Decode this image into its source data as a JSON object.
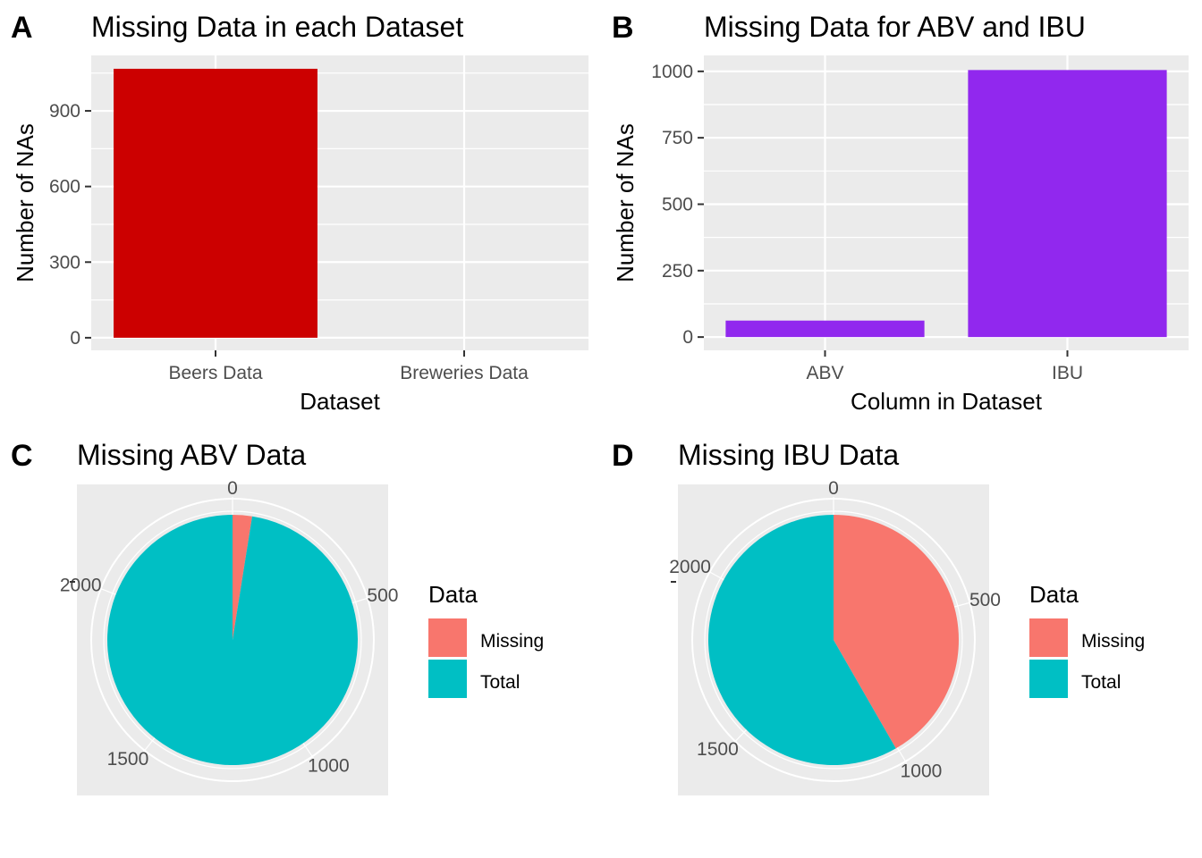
{
  "panels": {
    "a": "A",
    "b": "B",
    "c": "C",
    "d": "D"
  },
  "colors": {
    "panel_bg": "#EBEBEB",
    "grid": "#FFFFFF",
    "tick_text": "#4D4D4D",
    "beers_bar": "#CC0000",
    "abv_ibu_bar": "#9128EE",
    "missing": "#F8766D",
    "total": "#00BFC4"
  },
  "chart_data": [
    {
      "panel": "A",
      "type": "bar",
      "title": "Missing Data in each Dataset",
      "xlabel": "Dataset",
      "ylabel": "Number of NAs",
      "categories": [
        "Beers Data",
        "Breweries Data"
      ],
      "values": [
        1067,
        0
      ],
      "ylim": [
        -50,
        1120
      ],
      "yticks": [
        0,
        300,
        600,
        900
      ],
      "grid": true
    },
    {
      "panel": "B",
      "type": "bar",
      "title": "Missing Data for ABV and IBU",
      "xlabel": "Column in Dataset",
      "ylabel": "Number of NAs",
      "categories": [
        "ABV",
        "IBU"
      ],
      "values": [
        62,
        1005
      ],
      "ylim": [
        -50,
        1060
      ],
      "yticks": [
        0,
        250,
        500,
        750,
        1000
      ],
      "grid": true
    },
    {
      "panel": "C",
      "type": "pie",
      "title": "Missing ABV Data",
      "legend_title": "Data",
      "legend_placement": "right",
      "labels": [
        "Missing",
        "Total"
      ],
      "values": [
        62,
        2410
      ],
      "radial_ticks": [
        0,
        500,
        1000,
        1500,
        2000
      ]
    },
    {
      "panel": "D",
      "type": "pie",
      "title": "Missing IBU Data",
      "legend_title": "Data",
      "legend_placement": "right",
      "labels": [
        "Missing",
        "Total"
      ],
      "values": [
        1005,
        1405
      ],
      "radial_ticks": [
        0,
        500,
        1000,
        1500,
        2000
      ]
    }
  ]
}
